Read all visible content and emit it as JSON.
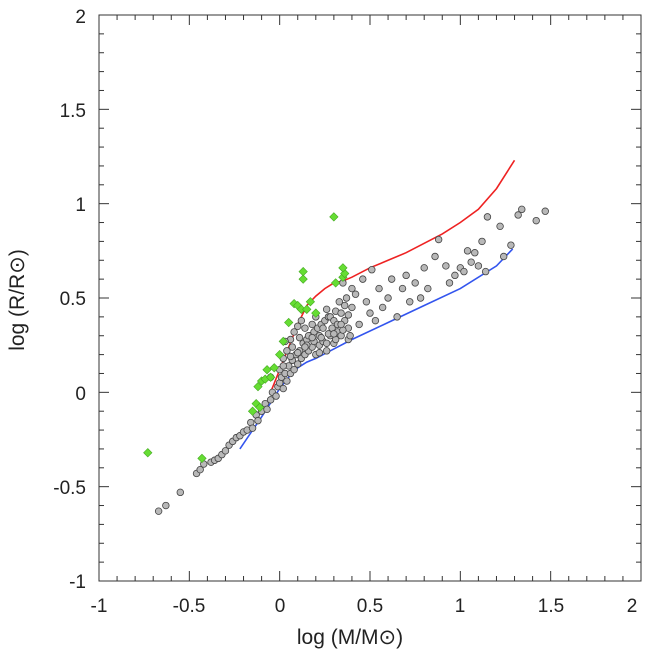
{
  "chart_data": {
    "type": "scatter",
    "xlabel": "log (M/M⊙)",
    "ylabel": "log (R/R⊙)",
    "xlim": [
      -1,
      2
    ],
    "ylim": [
      -1,
      2
    ],
    "xticks": [
      "-1",
      "-0.5",
      "0",
      "0.5",
      "1",
      "1.5",
      "2"
    ],
    "yticks": [
      "-1",
      "-0.5",
      "0",
      "0.5",
      "1",
      "1.5",
      "2"
    ],
    "grid": false,
    "series": [
      {
        "name": "gray-stars",
        "marker": "circle",
        "color": "#b8b8b8",
        "points": [
          [
            -0.67,
            -0.63
          ],
          [
            -0.63,
            -0.6
          ],
          [
            -0.55,
            -0.53
          ],
          [
            -0.46,
            -0.43
          ],
          [
            -0.44,
            -0.41
          ],
          [
            -0.42,
            -0.38
          ],
          [
            -0.38,
            -0.37
          ],
          [
            -0.36,
            -0.36
          ],
          [
            -0.34,
            -0.35
          ],
          [
            -0.32,
            -0.33
          ],
          [
            -0.3,
            -0.31
          ],
          [
            -0.28,
            -0.28
          ],
          [
            -0.26,
            -0.26
          ],
          [
            -0.24,
            -0.24
          ],
          [
            -0.22,
            -0.23
          ],
          [
            -0.2,
            -0.21
          ],
          [
            -0.18,
            -0.2
          ],
          [
            -0.16,
            -0.16
          ],
          [
            -0.15,
            -0.19
          ],
          [
            -0.13,
            -0.12
          ],
          [
            -0.12,
            -0.15
          ],
          [
            -0.1,
            -0.1
          ],
          [
            -0.08,
            -0.06
          ],
          [
            -0.07,
            -0.09
          ],
          [
            -0.05,
            -0.04
          ],
          [
            -0.04,
            0.0
          ],
          [
            -0.02,
            -0.02
          ],
          [
            -0.01,
            0.03
          ],
          [
            0.0,
            0.05
          ],
          [
            0.01,
            0.08
          ],
          [
            0.02,
            0.02
          ],
          [
            0.03,
            0.1
          ],
          [
            0.04,
            0.06
          ],
          [
            0.05,
            0.14
          ],
          [
            0.06,
            0.1
          ],
          [
            0.07,
            0.17
          ],
          [
            0.08,
            0.12
          ],
          [
            0.09,
            0.2
          ],
          [
            0.1,
            0.15
          ],
          [
            0.11,
            0.22
          ],
          [
            0.12,
            0.18
          ],
          [
            0.13,
            0.26
          ],
          [
            0.14,
            0.2
          ],
          [
            0.15,
            0.28
          ],
          [
            0.16,
            0.22
          ],
          [
            0.17,
            0.3
          ],
          [
            0.18,
            0.24
          ],
          [
            0.19,
            0.32
          ],
          [
            0.2,
            0.2
          ],
          [
            0.21,
            0.34
          ],
          [
            0.22,
            0.25
          ],
          [
            0.23,
            0.36
          ],
          [
            0.24,
            0.27
          ],
          [
            0.25,
            0.38
          ],
          [
            0.26,
            0.22
          ],
          [
            0.27,
            0.4
          ],
          [
            0.28,
            0.3
          ],
          [
            0.29,
            0.34
          ],
          [
            0.3,
            0.26
          ],
          [
            0.31,
            0.43
          ],
          [
            0.32,
            0.32
          ],
          [
            0.33,
            0.48
          ],
          [
            0.34,
            0.3
          ],
          [
            0.35,
            0.58
          ],
          [
            0.36,
            0.38
          ],
          [
            0.37,
            0.5
          ],
          [
            0.38,
            0.28
          ],
          [
            0.4,
            0.45
          ],
          [
            0.42,
            0.52
          ],
          [
            0.44,
            0.36
          ],
          [
            0.46,
            0.6
          ],
          [
            0.48,
            0.48
          ],
          [
            0.5,
            0.42
          ],
          [
            0.51,
            0.65
          ],
          [
            0.53,
            0.38
          ],
          [
            0.55,
            0.55
          ],
          [
            0.57,
            0.45
          ],
          [
            0.6,
            0.5
          ],
          [
            0.62,
            0.6
          ],
          [
            0.65,
            0.4
          ],
          [
            0.68,
            0.55
          ],
          [
            0.7,
            0.62
          ],
          [
            0.72,
            0.48
          ],
          [
            0.75,
            0.58
          ],
          [
            0.78,
            0.5
          ],
          [
            0.8,
            0.66
          ],
          [
            0.82,
            0.55
          ],
          [
            0.86,
            0.72
          ],
          [
            0.88,
            0.81
          ],
          [
            0.92,
            0.67
          ],
          [
            0.94,
            0.58
          ],
          [
            0.97,
            0.62
          ],
          [
            1.0,
            0.66
          ],
          [
            1.02,
            0.64
          ],
          [
            1.04,
            0.75
          ],
          [
            1.06,
            0.69
          ],
          [
            1.08,
            0.74
          ],
          [
            1.1,
            0.67
          ],
          [
            1.12,
            0.8
          ],
          [
            1.14,
            0.64
          ],
          [
            1.15,
            0.93
          ],
          [
            1.22,
            0.88
          ],
          [
            1.24,
            0.72
          ],
          [
            1.28,
            0.78
          ],
          [
            1.32,
            0.94
          ],
          [
            1.34,
            0.97
          ],
          [
            1.42,
            0.91
          ],
          [
            1.47,
            0.96
          ],
          [
            -0.05,
            0.08
          ],
          [
            0.0,
            0.12
          ],
          [
            0.02,
            0.18
          ],
          [
            0.04,
            0.22
          ],
          [
            0.06,
            0.28
          ],
          [
            0.08,
            0.32
          ],
          [
            0.1,
            0.35
          ],
          [
            0.12,
            0.38
          ],
          [
            0.14,
            0.34
          ],
          [
            0.16,
            0.3
          ],
          [
            0.18,
            0.36
          ],
          [
            0.2,
            0.4
          ],
          [
            0.22,
            0.3
          ],
          [
            0.24,
            0.34
          ],
          [
            0.26,
            0.44
          ],
          [
            0.28,
            0.4
          ],
          [
            0.3,
            0.38
          ],
          [
            0.32,
            0.36
          ],
          [
            0.34,
            0.42
          ],
          [
            0.36,
            0.46
          ],
          [
            0.38,
            0.34
          ],
          [
            0.4,
            0.55
          ],
          [
            0.03,
            0.27
          ],
          [
            0.07,
            0.24
          ],
          [
            0.11,
            0.29
          ],
          [
            0.15,
            0.25
          ],
          [
            0.19,
            0.27
          ],
          [
            0.23,
            0.29
          ],
          [
            0.27,
            0.31
          ],
          [
            0.31,
            0.28
          ],
          [
            0.35,
            0.33
          ],
          [
            0.39,
            0.3
          ],
          [
            0.02,
            0.14
          ],
          [
            0.06,
            0.19
          ],
          [
            0.1,
            0.21
          ],
          [
            0.14,
            0.24
          ],
          [
            0.18,
            0.29
          ],
          [
            0.22,
            0.21
          ],
          [
            0.26,
            0.26
          ],
          [
            0.3,
            0.31
          ],
          [
            0.34,
            0.36
          ],
          [
            0.38,
            0.41
          ]
        ]
      },
      {
        "name": "green-stars",
        "marker": "diamond",
        "color": "#66dd33",
        "points": [
          [
            -0.73,
            -0.32
          ],
          [
            -0.43,
            -0.35
          ],
          [
            -0.15,
            -0.1
          ],
          [
            -0.13,
            -0.06
          ],
          [
            -0.11,
            -0.08
          ],
          [
            -0.12,
            0.03
          ],
          [
            -0.1,
            0.06
          ],
          [
            -0.08,
            0.07
          ],
          [
            -0.07,
            0.12
          ],
          [
            -0.05,
            0.08
          ],
          [
            -0.03,
            0.13
          ],
          [
            0.0,
            0.2
          ],
          [
            0.02,
            0.27
          ],
          [
            0.05,
            0.37
          ],
          [
            0.08,
            0.47
          ],
          [
            0.1,
            0.46
          ],
          [
            0.12,
            0.44
          ],
          [
            0.13,
            0.6
          ],
          [
            0.13,
            0.64
          ],
          [
            0.15,
            0.44
          ],
          [
            0.17,
            0.48
          ],
          [
            0.2,
            0.42
          ],
          [
            0.3,
            0.93
          ],
          [
            0.31,
            0.58
          ],
          [
            0.35,
            0.61
          ],
          [
            0.36,
            0.63
          ],
          [
            0.35,
            0.66
          ]
        ]
      }
    ],
    "lines": [
      {
        "name": "red-curve",
        "color": "#ee2222",
        "points": [
          [
            -0.05,
            0.0
          ],
          [
            0.0,
            0.12
          ],
          [
            0.05,
            0.24
          ],
          [
            0.1,
            0.36
          ],
          [
            0.15,
            0.46
          ],
          [
            0.2,
            0.51
          ],
          [
            0.25,
            0.55
          ],
          [
            0.3,
            0.58
          ],
          [
            0.35,
            0.59
          ],
          [
            0.4,
            0.61
          ],
          [
            0.5,
            0.66
          ],
          [
            0.6,
            0.7
          ],
          [
            0.7,
            0.74
          ],
          [
            0.8,
            0.79
          ],
          [
            0.9,
            0.84
          ],
          [
            1.0,
            0.9
          ],
          [
            1.1,
            0.97
          ],
          [
            1.2,
            1.08
          ],
          [
            1.3,
            1.23
          ]
        ]
      },
      {
        "name": "blue-curve",
        "color": "#3355ee",
        "points": [
          [
            -0.22,
            -0.3
          ],
          [
            -0.1,
            -0.13
          ],
          [
            0.0,
            0.02
          ],
          [
            0.05,
            0.08
          ],
          [
            0.1,
            0.13
          ],
          [
            0.15,
            0.16
          ],
          [
            0.2,
            0.18
          ],
          [
            0.3,
            0.23
          ],
          [
            0.4,
            0.28
          ],
          [
            0.6,
            0.37
          ],
          [
            0.8,
            0.46
          ],
          [
            1.0,
            0.55
          ],
          [
            1.2,
            0.67
          ],
          [
            1.29,
            0.76
          ]
        ]
      }
    ]
  }
}
